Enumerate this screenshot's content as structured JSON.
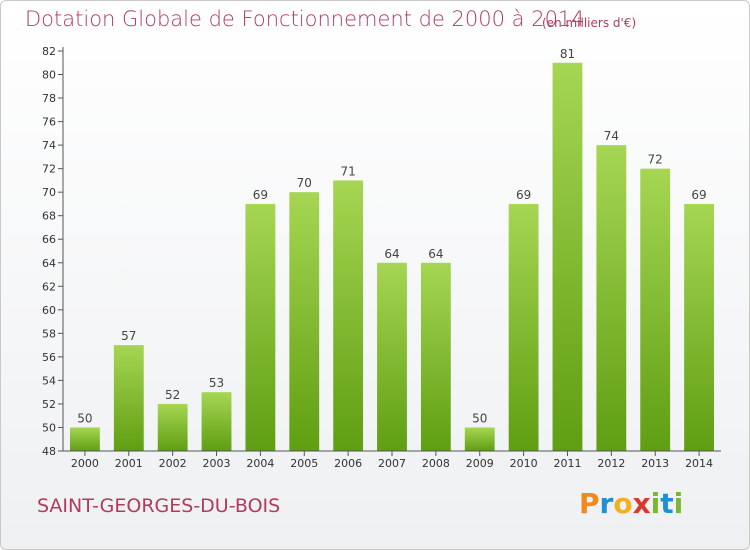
{
  "header": {
    "title": "Dotation Globale de Fonctionnement de 2000 à 2014",
    "subtitle": "(en milliers d'€)"
  },
  "footer": {
    "commune": "SAINT-GEORGES-DU-BOIS",
    "logo_letters": [
      "P",
      "r",
      "o",
      "x",
      "i",
      "t",
      "i"
    ],
    "logo_colors": [
      "#f08a1c",
      "#1f8fd6",
      "#f0b21c",
      "#d63a2c",
      "#7ab72e",
      "#1f8fd6",
      "#7ab72e"
    ]
  },
  "colors": {
    "bar_top": "#a6d653",
    "bar_bottom": "#5f9e12",
    "axis": "#555555",
    "grid": "#bbbbbb"
  },
  "chart_data": {
    "type": "bar",
    "categories": [
      "2000",
      "2001",
      "2002",
      "2003",
      "2004",
      "2005",
      "2006",
      "2007",
      "2008",
      "2009",
      "2010",
      "2011",
      "2012",
      "2013",
      "2014"
    ],
    "values": [
      50,
      57,
      52,
      53,
      69,
      70,
      71,
      64,
      64,
      50,
      69,
      81,
      74,
      72,
      69
    ],
    "yticks": [
      48,
      50,
      52,
      54,
      56,
      58,
      60,
      62,
      64,
      66,
      68,
      70,
      72,
      74,
      76,
      78,
      80,
      82
    ],
    "ylim": [
      48,
      82
    ],
    "title": "Dotation Globale de Fonctionnement de 2000 à 2014",
    "xlabel": "",
    "ylabel": "",
    "grid": false,
    "legend": "none"
  }
}
